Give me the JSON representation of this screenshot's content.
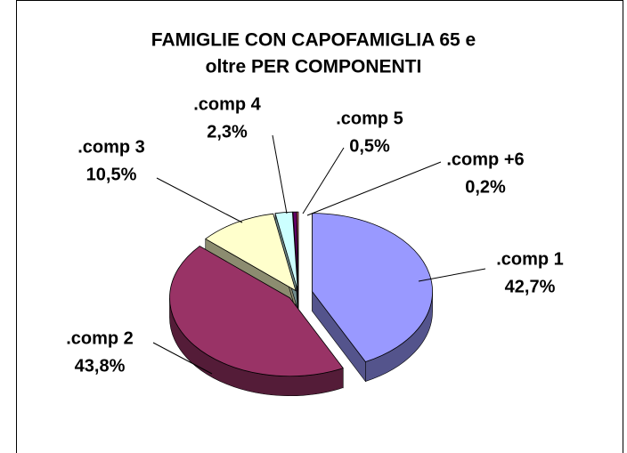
{
  "chart_data": {
    "type": "pie",
    "title": "FAMIGLIE CON CAPOFAMIGLIA 65 e oltre PER COMPONENTI",
    "title_lines": [
      "FAMIGLIE CON CAPOFAMIGLIA 65 e",
      "oltre PER COMPONENTI"
    ],
    "categories": [
      ".comp 1",
      ".comp 2",
      ".comp 3",
      ".comp 4",
      ".comp 5",
      ".comp +6"
    ],
    "values": [
      42.7,
      43.8,
      10.5,
      2.3,
      0.5,
      0.2
    ],
    "value_labels": [
      "42,7%",
      "43,8%",
      "10,5%",
      "2,3%",
      "0,5%",
      "0,2%"
    ],
    "colors": [
      "#9999ff",
      "#993366",
      "#ffffcc",
      "#ccffff",
      "#660066",
      "#ff8080"
    ]
  }
}
